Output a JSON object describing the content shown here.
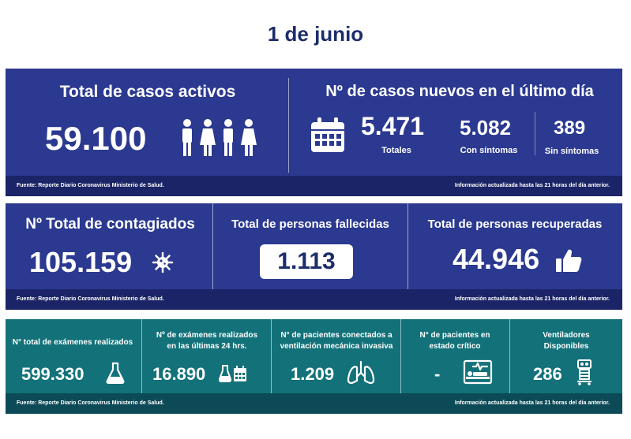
{
  "date": "1 de junio",
  "footer": {
    "source": "Fuente: Reporte Diario Coronavirus Ministerio de Salud.",
    "updated": "Información actualizada hasta las 21 horas  del día anterior."
  },
  "active": {
    "title": "Total de casos activos",
    "value": "59.100",
    "icon": "people-icon"
  },
  "new_cases": {
    "title": "Nº de casos nuevos en el último día",
    "total_value": "5.471",
    "total_label": "Totales",
    "symptomatic_value": "5.082",
    "symptomatic_label": "Con síntomas",
    "asymptomatic_value": "389",
    "asymptomatic_label": "Sin síntomas",
    "icon": "calendar-icon"
  },
  "infected": {
    "title": "Nº Total de contagiados",
    "value": "105.159",
    "icon": "virus-icon"
  },
  "deceased": {
    "title": "Total de personas fallecidas",
    "value": "1.113"
  },
  "recovered": {
    "title": "Total de personas recuperadas",
    "value": "44.946",
    "icon": "thumbs-up-icon"
  },
  "tests_total": {
    "title": "N° total de exámenes realizados",
    "value": "599.330",
    "icon": "flask-icon"
  },
  "tests_24h": {
    "title_line1": "Nº de exámenes realizados",
    "title_line2": "en las últimas 24 hrs.",
    "value": "16.890",
    "icon": "flask-calendar-icon"
  },
  "ventilated": {
    "title_line1": "N° de pacientes conectados a",
    "title_line2": "ventilación mecánica invasiva",
    "value": "1.209",
    "icon": "lungs-icon"
  },
  "critical": {
    "title_line1": "N° de pacientes  en",
    "title_line2": "estado crítico",
    "value": "-",
    "icon": "hospital-bed-icon"
  },
  "ventilators": {
    "title_line1": "Ventiladores",
    "title_line2": "Disponibles",
    "value": "286",
    "icon": "ventilator-icon"
  },
  "colors": {
    "blue_panel": "#2b3990",
    "teal_panel": "#127179",
    "title_text": "#1c2d6b"
  }
}
